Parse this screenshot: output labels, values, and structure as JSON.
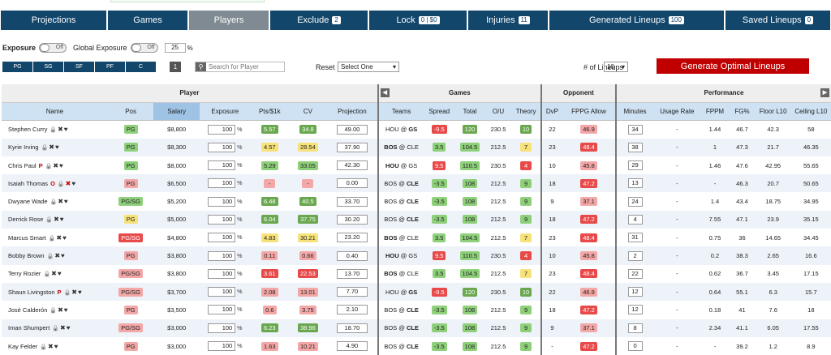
{
  "nav": [
    {
      "label": "Projections",
      "badge": null
    },
    {
      "label": "Games",
      "badge": null
    },
    {
      "label": "Players",
      "badge": null
    },
    {
      "label": "Exclude",
      "badge": "2"
    },
    {
      "label": "Lock",
      "badge": "0 | $0"
    },
    {
      "label": "Injuries",
      "badge": "11"
    },
    {
      "label": "Generated Lineups",
      "badge": "100"
    },
    {
      "label": "Saved Lineups",
      "badge": "0"
    }
  ],
  "controls": {
    "exposure_label": "Exposure",
    "toggle_off": "Off",
    "global_exposure_label": "Global Exposure",
    "global_value": "25",
    "pct": "%",
    "positions": [
      "PG",
      "SG",
      "SF",
      "PF",
      "C"
    ],
    "count_btn": "1",
    "search_placeholder": "Search for Player",
    "reset_label": "Reset",
    "reset_select": "Select One",
    "num_lineups_label": "# of Lineups",
    "num_lineups_value": "10",
    "generate_label": "Generate Optimal Lineups"
  },
  "groups": {
    "player": "Player",
    "games": "Games",
    "opponent": "Opponent",
    "performance": "Performance"
  },
  "columns": [
    "Name",
    "Pos",
    "Salary",
    "Exposure",
    "Pts/$1k",
    "CV",
    "Projection",
    "Teams",
    "Spread",
    "Total",
    "O/U",
    "Theory",
    "DvP",
    "FPPG Allow",
    "Minutes",
    "Usage Rate",
    "FPPM",
    "FG%",
    "Floor L10",
    "Ceiling L10"
  ],
  "colors": {
    "nav": "#12466b",
    "generate": "#c00000",
    "header": "#cfe2f3"
  },
  "rows": [
    {
      "name": "Stephen Curry",
      "flag": "",
      "pos": "PG",
      "posc": "c-lg",
      "salary": "$8,800",
      "exp": "100",
      "pts": "5.57",
      "ptsc": "c-g",
      "cv": "34.8",
      "cvc": "c-g",
      "proj": "49.00",
      "teamA": "HOU",
      "teamB": "GS",
      "boldB": true,
      "spread": "-9.5",
      "spc": "c-r",
      "total": "120",
      "totc": "c-g",
      "ou": "230.5",
      "theory": "10",
      "thc": "c-g",
      "dvp": "22",
      "fppg": "46.9",
      "fpc": "c-pr",
      "min": "34",
      "usage": "-",
      "fppm": "1.44",
      "fg": "46.7",
      "floor": "42.3",
      "ceil": "58"
    },
    {
      "name": "Kyrie Irving",
      "flag": "",
      "pos": "PG",
      "posc": "c-lg",
      "salary": "$8,300",
      "exp": "100",
      "pts": "4.57",
      "ptsc": "c-y",
      "cv": "28.54",
      "cvc": "c-y",
      "proj": "37.90",
      "teamA": "BOS",
      "teamB": "CLE",
      "boldB": false,
      "boldA": true,
      "spread": "3.5",
      "spc": "c-lg",
      "total": "104.5",
      "totc": "c-lg",
      "ou": "212.5",
      "theory": "7",
      "thc": "c-y",
      "dvp": "23",
      "fppg": "48.4",
      "fpc": "c-r",
      "min": "38",
      "usage": "-",
      "fppm": "1",
      "fg": "47.3",
      "floor": "21.7",
      "ceil": "46.35"
    },
    {
      "name": "Chris Paul",
      "flag": "P",
      "pos": "PG",
      "posc": "c-lg",
      "salary": "$8,000",
      "exp": "100",
      "pts": "5.29",
      "ptsc": "c-lg",
      "cv": "33.05",
      "cvc": "c-lg",
      "proj": "42.30",
      "teamA": "HOU",
      "teamB": "GS",
      "boldA": true,
      "spread": "9.5",
      "spc": "c-r",
      "total": "110.5",
      "totc": "c-lg",
      "ou": "230.5",
      "theory": "4",
      "thc": "c-r",
      "dvp": "10",
      "fppg": "45.8",
      "fpc": "c-pr",
      "min": "29",
      "usage": "-",
      "fppm": "1.46",
      "fg": "47.6",
      "floor": "42.95",
      "ceil": "55.65"
    },
    {
      "name": "Isaiah Thomas",
      "flag": "O",
      "pos": "PG",
      "posc": "c-pr",
      "salary": "$6,500",
      "exp": "100",
      "pts": "-",
      "ptsc": "c-pr",
      "cv": "-",
      "cvc": "c-pr",
      "proj": "0.00",
      "teamA": "BOS",
      "teamB": "CLE",
      "boldB": true,
      "spread": "-3.5",
      "spc": "c-lg",
      "total": "108",
      "totc": "c-lg",
      "ou": "212.5",
      "theory": "9",
      "thc": "c-lg",
      "dvp": "18",
      "fppg": "47.2",
      "fpc": "c-r",
      "min": "13",
      "usage": "-",
      "fppm": "-",
      "fg": "46.3",
      "floor": "20.7",
      "ceil": "50.65"
    },
    {
      "name": "Dwyane Wade",
      "flag": "",
      "pos": "PG/SG",
      "posc": "c-lg",
      "salary": "$5,200",
      "exp": "100",
      "pts": "6.48",
      "ptsc": "c-g",
      "cv": "40.5",
      "cvc": "c-g",
      "proj": "33.70",
      "teamA": "BOS",
      "teamB": "CLE",
      "boldB": true,
      "spread": "-3.5",
      "spc": "c-lg",
      "total": "108",
      "totc": "c-lg",
      "ou": "212.5",
      "theory": "9",
      "thc": "c-lg",
      "dvp": "9",
      "fppg": "37.1",
      "fpc": "c-pr",
      "min": "24",
      "usage": "-",
      "fppm": "1.4",
      "fg": "43.4",
      "floor": "18.75",
      "ceil": "34.95"
    },
    {
      "name": "Derrick Rose",
      "flag": "",
      "pos": "PG",
      "posc": "c-y",
      "salary": "$5,000",
      "exp": "100",
      "pts": "6.04",
      "ptsc": "c-g",
      "cv": "37.75",
      "cvc": "c-g",
      "proj": "30.20",
      "teamA": "BOS",
      "teamB": "CLE",
      "boldB": true,
      "spread": "-3.5",
      "spc": "c-lg",
      "total": "108",
      "totc": "c-lg",
      "ou": "212.5",
      "theory": "9",
      "thc": "c-lg",
      "dvp": "18",
      "fppg": "47.2",
      "fpc": "c-r",
      "min": "4",
      "usage": "-",
      "fppm": "7.55",
      "fg": "47.1",
      "floor": "23.9",
      "ceil": "35.15"
    },
    {
      "name": "Marcus Smart",
      "flag": "",
      "pos": "PG/SG",
      "posc": "c-r",
      "salary": "$4,800",
      "exp": "100",
      "pts": "4.83",
      "ptsc": "c-y",
      "cv": "30.21",
      "cvc": "c-y",
      "proj": "23.20",
      "teamA": "BOS",
      "teamB": "CLE",
      "boldA": true,
      "spread": "3.5",
      "spc": "c-lg",
      "total": "104.5",
      "totc": "c-lg",
      "ou": "212.5",
      "theory": "7",
      "thc": "c-y",
      "dvp": "23",
      "fppg": "48.4",
      "fpc": "c-r",
      "min": "31",
      "usage": "-",
      "fppm": "0.75",
      "fg": "36",
      "floor": "14.65",
      "ceil": "34.45"
    },
    {
      "name": "Bobby Brown",
      "flag": "",
      "pos": "PG",
      "posc": "c-pr",
      "salary": "$3,800",
      "exp": "100",
      "pts": "0.11",
      "ptsc": "c-pr",
      "cv": "0.66",
      "cvc": "c-pr",
      "proj": "0.40",
      "teamA": "HOU",
      "teamB": "GS",
      "boldA": true,
      "spread": "9.5",
      "spc": "c-r",
      "total": "110.5",
      "totc": "c-lg",
      "ou": "230.5",
      "theory": "4",
      "thc": "c-r",
      "dvp": "10",
      "fppg": "45.8",
      "fpc": "c-pr",
      "min": "2",
      "usage": "-",
      "fppm": "0.2",
      "fg": "38.3",
      "floor": "2.65",
      "ceil": "16.6"
    },
    {
      "name": "Terry Rozier",
      "flag": "",
      "pos": "PG/SG",
      "posc": "c-pr",
      "salary": "$3,800",
      "exp": "100",
      "pts": "3.61",
      "ptsc": "c-r",
      "cv": "22.53",
      "cvc": "c-r",
      "proj": "13.70",
      "teamA": "BOS",
      "teamB": "CLE",
      "boldA": true,
      "spread": "3.5",
      "spc": "c-lg",
      "total": "104.5",
      "totc": "c-lg",
      "ou": "212.5",
      "theory": "7",
      "thc": "c-y",
      "dvp": "23",
      "fppg": "48.4",
      "fpc": "c-r",
      "min": "22",
      "usage": "-",
      "fppm": "0.62",
      "fg": "36.7",
      "floor": "3.45",
      "ceil": "17.15"
    },
    {
      "name": "Shaun Livingston",
      "flag": "P",
      "pos": "PG/SG",
      "posc": "c-pr",
      "salary": "$3,700",
      "exp": "100",
      "pts": "2.08",
      "ptsc": "c-pr",
      "cv": "13.01",
      "cvc": "c-pr",
      "proj": "7.70",
      "teamA": "HOU",
      "teamB": "GS",
      "boldB": true,
      "spread": "-9.5",
      "spc": "c-r",
      "total": "120",
      "totc": "c-g",
      "ou": "230.5",
      "theory": "10",
      "thc": "c-g",
      "dvp": "22",
      "fppg": "46.9",
      "fpc": "c-pr",
      "min": "12",
      "usage": "-",
      "fppm": "0.64",
      "fg": "55.1",
      "floor": "6.3",
      "ceil": "15.7"
    },
    {
      "name": "José Calderón",
      "flag": "",
      "pos": "PG",
      "posc": "c-pr",
      "salary": "$3,500",
      "exp": "100",
      "pts": "0.6",
      "ptsc": "c-pr",
      "cv": "3.75",
      "cvc": "c-pr",
      "proj": "2.10",
      "teamA": "BOS",
      "teamB": "CLE",
      "boldB": true,
      "spread": "-3.5",
      "spc": "c-lg",
      "total": "108",
      "totc": "c-lg",
      "ou": "212.5",
      "theory": "9",
      "thc": "c-lg",
      "dvp": "18",
      "fppg": "47.2",
      "fpc": "c-r",
      "min": "12",
      "usage": "-",
      "fppm": "0.18",
      "fg": "41",
      "floor": "7.6",
      "ceil": "18"
    },
    {
      "name": "Iman Shumpert",
      "flag": "",
      "pos": "PG/SG",
      "posc": "c-pr",
      "salary": "$3,000",
      "exp": "100",
      "pts": "6.23",
      "ptsc": "c-g",
      "cv": "38.96",
      "cvc": "c-g",
      "proj": "18.70",
      "teamA": "BOS",
      "teamB": "CLE",
      "boldB": true,
      "spread": "-3.5",
      "spc": "c-lg",
      "total": "108",
      "totc": "c-lg",
      "ou": "212.5",
      "theory": "9",
      "thc": "c-lg",
      "dvp": "9",
      "fppg": "37.1",
      "fpc": "c-pr",
      "min": "8",
      "usage": "-",
      "fppm": "2.34",
      "fg": "41.1",
      "floor": "6.05",
      "ceil": "17.55"
    },
    {
      "name": "Kay Felder",
      "flag": "",
      "pos": "PG",
      "posc": "c-pr",
      "salary": "$3,000",
      "exp": "100",
      "pts": "1.63",
      "ptsc": "c-pr",
      "cv": "10.21",
      "cvc": "c-pr",
      "proj": "4.90",
      "teamA": "BOS",
      "teamB": "CLE",
      "boldB": true,
      "spread": "-3.5",
      "spc": "c-lg",
      "total": "108",
      "totc": "c-lg",
      "ou": "212.5",
      "theory": "9",
      "thc": "c-lg",
      "dvp": "-",
      "fppg": "47.2",
      "fpc": "c-r",
      "min": "0",
      "usage": "-",
      "fppm": "-",
      "fg": "39.2",
      "floor": "1.2",
      "ceil": "8.9"
    }
  ]
}
